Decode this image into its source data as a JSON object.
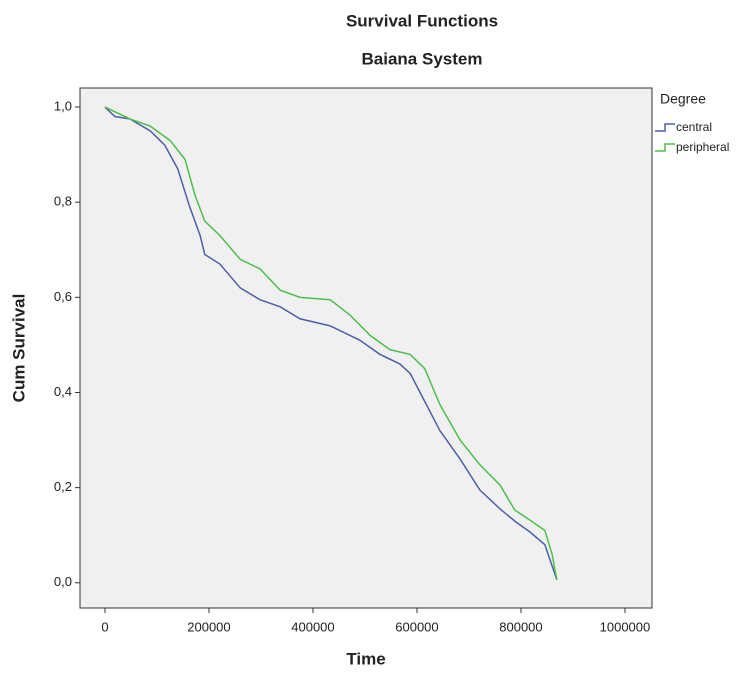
{
  "chart_data": {
    "type": "line",
    "title": "Survival Functions",
    "subtitle": "Baiana System",
    "x_label": "Time",
    "y_label": "Cum Survival",
    "legend_title": "Degree",
    "legend_position": "right",
    "xlim": [
      -48000,
      1052000
    ],
    "ylim": [
      -0.053,
      1.04
    ],
    "xticks": [
      0,
      200000,
      400000,
      600000,
      800000,
      1000000
    ],
    "yticks": [
      {
        "value": 0,
        "label": "0,0"
      },
      {
        "value": 0.2,
        "label": "0,2"
      },
      {
        "value": 0.4,
        "label": "0,4"
      },
      {
        "value": 0.6,
        "label": "0,6"
      },
      {
        "value": 0.8,
        "label": "0,8"
      },
      {
        "value": 1,
        "label": "1,0"
      }
    ],
    "series": [
      {
        "name": "central",
        "color": "#4d5fa6",
        "x": [
          0,
          19000,
          48000,
          87000,
          115000,
          140000,
          163000,
          183000,
          192000,
          221000,
          260000,
          298000,
          337000,
          375000,
          433000,
          490000,
          529000,
          567000,
          587000,
          606000,
          644000,
          683000,
          721000,
          760000,
          790000,
          817000,
          846000,
          856000,
          869000
        ],
        "values": [
          1.0,
          0.98,
          0.975,
          0.95,
          0.92,
          0.87,
          0.79,
          0.73,
          0.69,
          0.67,
          0.62,
          0.595,
          0.58,
          0.555,
          0.54,
          0.51,
          0.48,
          0.46,
          0.44,
          0.4,
          0.32,
          0.26,
          0.195,
          0.155,
          0.128,
          0.107,
          0.08,
          0.048,
          0.006
        ]
      },
      {
        "name": "peripheral",
        "color": "#4cbf4c",
        "x": [
          0,
          48000,
          87000,
          125000,
          154000,
          173000,
          192000,
          221000,
          260000,
          298000,
          337000,
          375000,
          433000,
          471000,
          510000,
          548000,
          587000,
          615000,
          644000,
          683000,
          721000,
          760000,
          788000,
          817000,
          846000,
          860000,
          869000
        ],
        "values": [
          1.0,
          0.975,
          0.96,
          0.93,
          0.89,
          0.815,
          0.76,
          0.73,
          0.68,
          0.66,
          0.615,
          0.6,
          0.595,
          0.563,
          0.52,
          0.49,
          0.48,
          0.45,
          0.375,
          0.3,
          0.248,
          0.205,
          0.153,
          0.132,
          0.11,
          0.059,
          0.006
        ]
      }
    ]
  }
}
